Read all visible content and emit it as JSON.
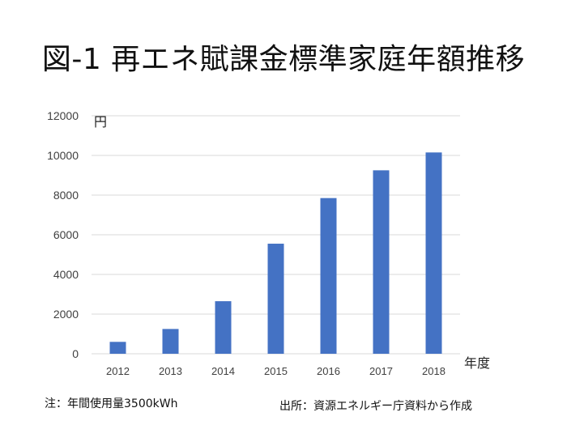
{
  "title": "図-1 再エネ賦課金標準家庭年額推移",
  "footnote": "注：年間使用量3500kWh",
  "source": "出所：資源エネルギー庁資料から作成",
  "colors": {
    "bar": "#4472c4",
    "grid": "#d9d9d9",
    "tick_text": "#404040"
  },
  "chart_data": {
    "type": "bar",
    "categories": [
      "2012",
      "2013",
      "2014",
      "2015",
      "2016",
      "2017",
      "2018"
    ],
    "values": [
      600,
      1250,
      2650,
      5550,
      7850,
      9250,
      10150
    ],
    "ylim": [
      0,
      12000
    ],
    "yticks": [
      0,
      2000,
      4000,
      6000,
      8000,
      10000,
      12000
    ],
    "ylabel": "円",
    "xlabel": "年度",
    "grid": true,
    "legend": "none"
  }
}
